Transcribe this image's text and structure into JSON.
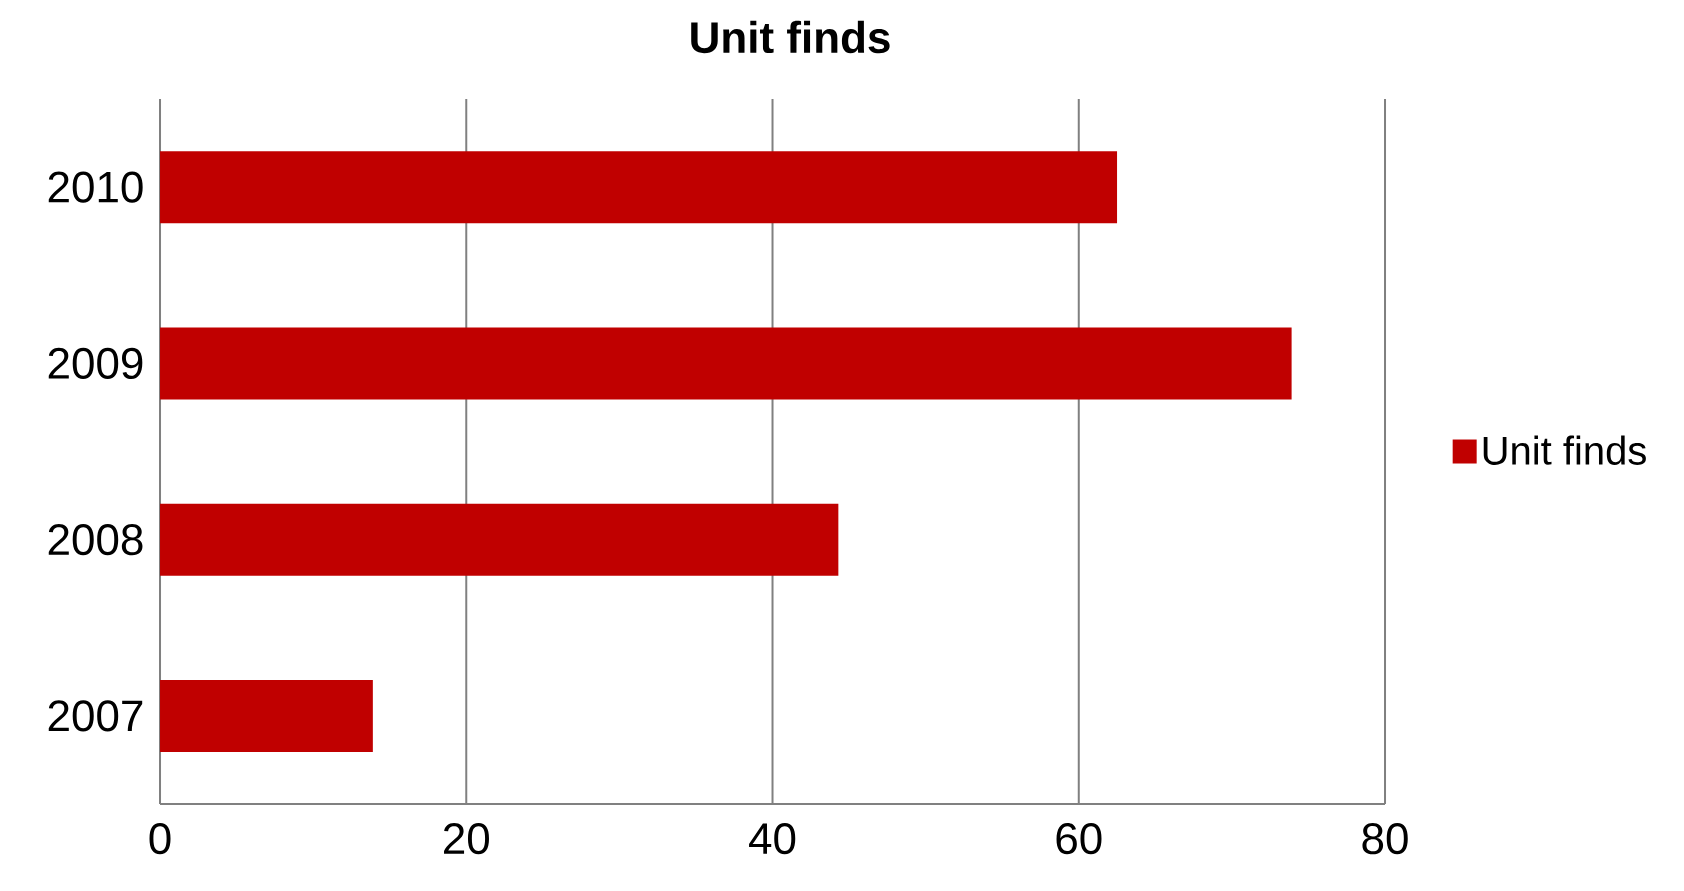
{
  "chart_data": {
    "type": "bar",
    "orientation": "horizontal",
    "title": "Unit finds",
    "categories": [
      "2010",
      "2009",
      "2008",
      "2007"
    ],
    "series": [
      {
        "name": "Unit finds",
        "color": "#c00000",
        "values": [
          62.5,
          73.9,
          44.3,
          13.9
        ]
      }
    ],
    "xlim": [
      0,
      80
    ],
    "xticks": [
      0,
      20,
      40,
      60,
      80
    ],
    "grid": "x",
    "legend": "right"
  }
}
